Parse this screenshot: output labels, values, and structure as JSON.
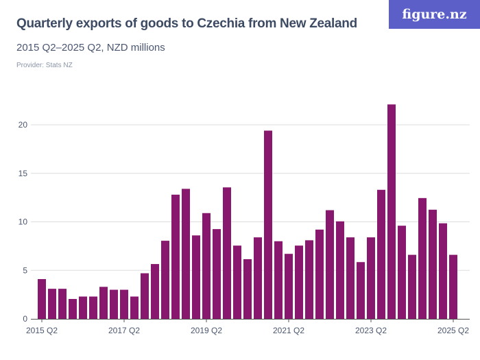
{
  "title": "Quarterly exports of goods to Czechia from New Zealand",
  "subtitle": "2015 Q2–2025 Q2, NZD millions",
  "provider": "Provider: Stats NZ",
  "logo": "figure.nz",
  "colors": {
    "bar": "#88176e",
    "logo_bg": "#5b5fc7",
    "grid": "#dddddd"
  },
  "chart_data": {
    "type": "bar",
    "title": "Quarterly exports of goods to Czechia from New Zealand",
    "ylim": [
      0,
      23
    ],
    "yticks": [
      0,
      5,
      10,
      15,
      20
    ],
    "grid": true,
    "xtick_labels": [
      "2015 Q2",
      "2017 Q2",
      "2019 Q2",
      "2021 Q2",
      "2023 Q2",
      "2025 Q2"
    ],
    "xtick_indices": [
      0,
      8,
      16,
      24,
      32,
      40
    ],
    "categories": [
      "2015 Q2",
      "2015 Q3",
      "2015 Q4",
      "2016 Q1",
      "2016 Q2",
      "2016 Q3",
      "2016 Q4",
      "2017 Q1",
      "2017 Q2",
      "2017 Q3",
      "2017 Q4",
      "2018 Q1",
      "2018 Q2",
      "2018 Q3",
      "2018 Q4",
      "2019 Q1",
      "2019 Q2",
      "2019 Q3",
      "2019 Q4",
      "2020 Q1",
      "2020 Q2",
      "2020 Q3",
      "2020 Q4",
      "2021 Q1",
      "2021 Q2",
      "2021 Q3",
      "2021 Q4",
      "2022 Q1",
      "2022 Q2",
      "2022 Q3",
      "2022 Q4",
      "2023 Q1",
      "2023 Q2",
      "2023 Q3",
      "2023 Q4",
      "2024 Q1",
      "2024 Q2",
      "2024 Q3",
      "2024 Q4",
      "2025 Q1",
      "2025 Q2"
    ],
    "values": [
      4.1,
      3.1,
      3.1,
      2.05,
      2.3,
      2.3,
      3.3,
      3.0,
      3.0,
      2.3,
      4.7,
      5.65,
      8.05,
      12.8,
      13.4,
      8.6,
      10.9,
      9.25,
      13.55,
      7.55,
      6.15,
      8.4,
      19.4,
      8.0,
      6.7,
      7.55,
      8.1,
      9.2,
      11.2,
      10.05,
      8.4,
      5.85,
      8.4,
      13.3,
      22.1,
      9.6,
      6.6,
      12.45,
      11.25,
      9.85,
      6.6
    ]
  }
}
